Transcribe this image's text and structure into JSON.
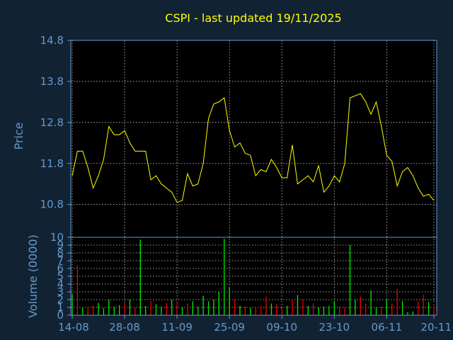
{
  "chart_data": [
    {
      "type": "line",
      "title": "CSPI - last updated 19/11/2025",
      "ylabel": "Price",
      "ylim": [
        10,
        14.8
      ],
      "yticks": [
        "14.8",
        "13.8",
        "12.8",
        "11.8",
        "10.8",
        "10"
      ],
      "ytick_values": [
        14.8,
        13.8,
        12.8,
        11.8,
        10.8,
        10
      ],
      "grid": true,
      "line_color": "#ffff00",
      "x": [
        "14-08",
        "15-08",
        "18-08",
        "19-08",
        "20-08",
        "21-08",
        "22-08",
        "25-08",
        "26-08",
        "27-08",
        "28-08",
        "29-08",
        "01-09",
        "02-09",
        "03-09",
        "04-09",
        "05-09",
        "08-09",
        "09-09",
        "10-09",
        "11-09",
        "12-09",
        "15-09",
        "16-09",
        "17-09",
        "18-09",
        "19-09",
        "22-09",
        "23-09",
        "24-09",
        "25-09",
        "26-09",
        "29-09",
        "30-09",
        "01-10",
        "02-10",
        "03-10",
        "06-10",
        "07-10",
        "08-10",
        "09-10",
        "10-10",
        "13-10",
        "14-10",
        "15-10",
        "16-10",
        "17-10",
        "20-10",
        "21-10",
        "22-10",
        "23-10",
        "24-10",
        "27-10",
        "28-10",
        "29-10",
        "30-10",
        "31-10",
        "03-11",
        "04-11",
        "05-11",
        "06-11",
        "07-11",
        "10-11",
        "11-11",
        "12-11",
        "13-11",
        "14-11",
        "17-11",
        "18-11",
        "19-11"
      ],
      "values": [
        11.5,
        12.1,
        12.1,
        11.7,
        11.2,
        11.5,
        11.9,
        12.7,
        12.5,
        12.5,
        12.6,
        12.3,
        12.1,
        12.1,
        12.1,
        11.4,
        11.5,
        11.3,
        11.2,
        11.1,
        10.85,
        10.9,
        11.55,
        11.25,
        11.3,
        11.8,
        12.9,
        13.25,
        13.3,
        13.4,
        12.6,
        12.2,
        12.3,
        12.05,
        12.0,
        11.5,
        11.65,
        11.6,
        11.9,
        11.7,
        11.45,
        11.45,
        12.25,
        11.3,
        11.4,
        11.5,
        11.35,
        11.75,
        11.1,
        11.25,
        11.5,
        11.35,
        11.8,
        13.4,
        13.45,
        13.5,
        13.3,
        13.0,
        13.3,
        12.7,
        12.0,
        11.85,
        11.25,
        11.6,
        11.7,
        11.5,
        11.2,
        11.0,
        11.05,
        10.9
      ]
    },
    {
      "type": "bar",
      "ylabel": "Volume (0000)",
      "ylim": [
        0,
        10
      ],
      "yticks": [
        "9",
        "8",
        "7",
        "6",
        "5",
        "4",
        "3",
        "2",
        "1",
        "0"
      ],
      "ytick_values": [
        9,
        8,
        7,
        6,
        5,
        4,
        3,
        2,
        1,
        0
      ],
      "grid": true,
      "up_color": "#00ee00",
      "down_color": "#ee0000",
      "xticks": [
        "14-08",
        "28-08",
        "11-09",
        "25-09",
        "09-10",
        "23-10",
        "06-11",
        "20-11"
      ],
      "values": [
        2.7,
        6.4,
        1.0,
        1.1,
        1.2,
        1.6,
        0.9,
        2.0,
        1.1,
        1.3,
        1.6,
        2.0,
        1.0,
        9.7,
        1.2,
        1.8,
        1.4,
        1.1,
        1.6,
        2.0,
        1.8,
        1.0,
        1.5,
        1.8,
        1.1,
        2.5,
        1.8,
        2.0,
        3.0,
        9.8,
        3.5,
        2.0,
        1.2,
        1.1,
        0.9,
        1.0,
        1.2,
        2.4,
        1.5,
        1.4,
        1.0,
        1.2,
        2.0,
        2.6,
        2.0,
        1.2,
        1.5,
        1.0,
        1.1,
        1.2,
        1.8,
        1.1,
        1.0,
        9.0,
        2.0,
        2.4,
        1.5,
        3.2,
        1.0,
        1.1,
        2.0,
        1.5,
        3.4,
        1.8,
        0.4,
        0.5,
        1.8,
        2.6,
        1.7,
        1.2
      ],
      "directions": [
        "up",
        "down",
        "up",
        "down",
        "down",
        "up",
        "up",
        "up",
        "up",
        "up",
        "down",
        "up",
        "down",
        "up",
        "up",
        "down",
        "up",
        "up",
        "down",
        "up",
        "down",
        "up",
        "down",
        "up",
        "up",
        "up",
        "up",
        "up",
        "up",
        "up",
        "up",
        "down",
        "up",
        "down",
        "up",
        "down",
        "down",
        "down",
        "up",
        "down",
        "down",
        "up",
        "down",
        "up",
        "down",
        "up",
        "down",
        "up",
        "up",
        "up",
        "up",
        "down",
        "down",
        "up",
        "up",
        "down",
        "down",
        "up",
        "up",
        "down",
        "up",
        "down",
        "down",
        "up",
        "up",
        "up",
        "down",
        "down",
        "up",
        "down"
      ]
    }
  ]
}
